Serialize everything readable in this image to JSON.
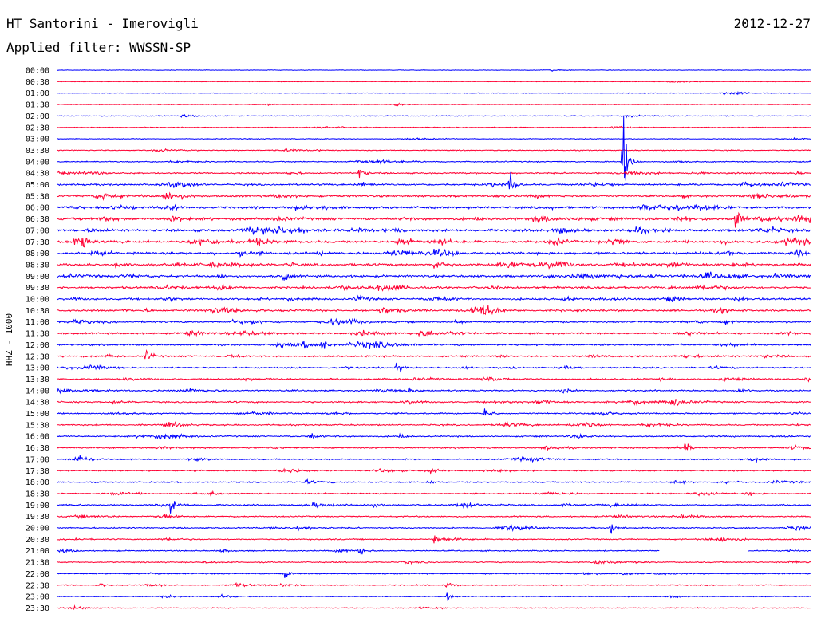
{
  "header": {
    "station": "HT Santorini - Imerovigli",
    "date": "2012-12-27",
    "filter": "Applied filter: WWSSN-SP"
  },
  "chart_data": {
    "type": "line",
    "title": "HT Santorini - Imerovigli",
    "subtitle": "Applied filter: WWSSN-SP",
    "date": "2012-12-27",
    "ylabel": "HHZ - 1000",
    "row_minutes": 30,
    "time_labels": [
      "00:00",
      "00:30",
      "01:00",
      "01:30",
      "02:00",
      "02:30",
      "03:00",
      "03:30",
      "04:00",
      "04:30",
      "05:00",
      "05:30",
      "06:00",
      "06:30",
      "07:00",
      "07:30",
      "08:00",
      "08:30",
      "09:00",
      "09:30",
      "10:00",
      "10:30",
      "11:00",
      "11:30",
      "12:00",
      "12:30",
      "13:00",
      "13:30",
      "14:00",
      "14:30",
      "15:00",
      "15:30",
      "16:00",
      "16:30",
      "17:00",
      "17:30",
      "18:00",
      "18:30",
      "19:00",
      "19:30",
      "20:00",
      "20:30",
      "21:00",
      "21:30",
      "22:00",
      "22:30",
      "23:00",
      "23:30"
    ],
    "series_colors": [
      "#0000ff",
      "#ff0033"
    ],
    "activity_levels": [
      0.1,
      0.1,
      0.15,
      0.15,
      0.2,
      0.2,
      0.2,
      0.25,
      0.35,
      0.45,
      0.6,
      0.7,
      0.85,
      0.9,
      0.9,
      0.9,
      0.9,
      0.9,
      0.8,
      0.75,
      0.7,
      0.7,
      0.6,
      0.6,
      0.6,
      0.55,
      0.5,
      0.5,
      0.5,
      0.5,
      0.45,
      0.45,
      0.45,
      0.45,
      0.4,
      0.4,
      0.4,
      0.4,
      0.45,
      0.4,
      0.4,
      0.4,
      0.35,
      0.35,
      0.3,
      0.3,
      0.25,
      0.25
    ],
    "events": [
      {
        "time": "04:00",
        "minute": 22.5,
        "amplitude": 95
      },
      {
        "time": "04:30",
        "minute": 12,
        "amplitude": 20
      },
      {
        "time": "05:00",
        "minute": 18,
        "amplitude": 30
      },
      {
        "time": "06:30",
        "minute": 27,
        "amplitude": 30
      },
      {
        "time": "07:30",
        "minute": 1,
        "amplitude": 18
      },
      {
        "time": "08:30",
        "minute": 15,
        "amplitude": 18
      },
      {
        "time": "09:00",
        "minute": 9,
        "amplitude": 16
      },
      {
        "time": "10:30",
        "minute": 17,
        "amplitude": 16
      },
      {
        "time": "12:00",
        "minute": 10.5,
        "amplitude": 18
      },
      {
        "time": "12:30",
        "minute": 3.5,
        "amplitude": 16
      },
      {
        "time": "13:00",
        "minute": 13.5,
        "amplitude": 14
      },
      {
        "time": "15:00",
        "minute": 17,
        "amplitude": 16
      },
      {
        "time": "16:00",
        "minute": 10,
        "amplitude": 14
      },
      {
        "time": "16:30",
        "minute": 25,
        "amplitude": 16
      },
      {
        "time": "17:00",
        "minute": 0.8,
        "amplitude": 14
      },
      {
        "time": "18:30",
        "minute": 6,
        "amplitude": 12
      },
      {
        "time": "19:00",
        "minute": 4.5,
        "amplitude": 16
      },
      {
        "time": "20:00",
        "minute": 22,
        "amplitude": 18
      },
      {
        "time": "20:30",
        "minute": 15,
        "amplitude": 14
      },
      {
        "time": "21:00",
        "minute": 12,
        "amplitude": 14
      },
      {
        "time": "22:00",
        "minute": 9,
        "amplitude": 14
      },
      {
        "time": "22:30",
        "minute": 15.5,
        "amplitude": 12
      },
      {
        "time": "23:00",
        "minute": 15.5,
        "amplitude": 10
      }
    ],
    "gaps": [
      {
        "time": "21:00",
        "start_minute": 24,
        "end_minute": 27.5
      }
    ],
    "grid": false,
    "legend": "none"
  }
}
